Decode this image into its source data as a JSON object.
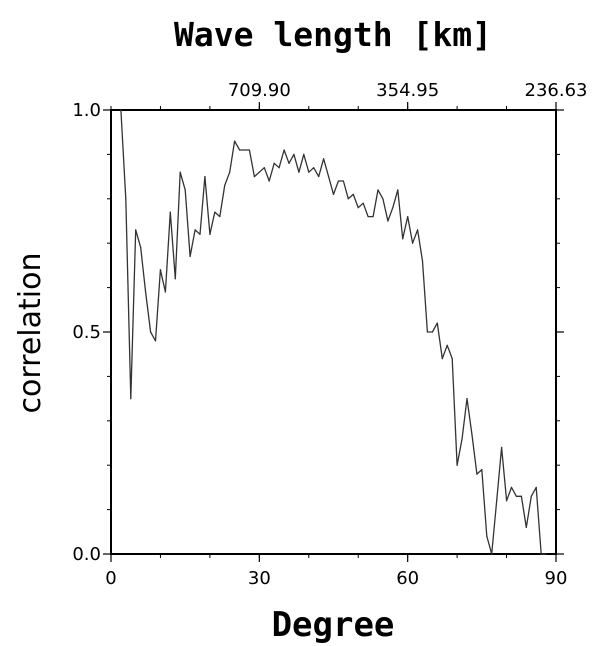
{
  "chart_data": {
    "type": "line",
    "title": "Wave length [km]",
    "xlabel": "Degree",
    "ylabel": "correlation",
    "xlim": [
      0,
      90
    ],
    "ylim": [
      0.0,
      1.0
    ],
    "x_ticks": [
      {
        "value": 0,
        "label": "0"
      },
      {
        "value": 30,
        "label": "30"
      },
      {
        "value": 60,
        "label": "60"
      },
      {
        "value": 90,
        "label": "90"
      }
    ],
    "y_ticks": [
      {
        "value": 0.0,
        "label": "0.0"
      },
      {
        "value": 0.5,
        "label": "0.5"
      },
      {
        "value": 1.0,
        "label": "1.0"
      }
    ],
    "top_ticks": [
      {
        "value": 30,
        "label": "709.90"
      },
      {
        "value": 60,
        "label": "354.95"
      },
      {
        "value": 90,
        "label": "236.63"
      }
    ],
    "grid": false,
    "series": [
      {
        "x": [
          2,
          3,
          4,
          5,
          6,
          7,
          8,
          9,
          10,
          11,
          12,
          13,
          14,
          15,
          16,
          17,
          18,
          19,
          20,
          21,
          22,
          23,
          24,
          25,
          26,
          27,
          28,
          29,
          30,
          31,
          32,
          33,
          34,
          35,
          36,
          37,
          38,
          39,
          40,
          41,
          42,
          43,
          44,
          45,
          46,
          47,
          48,
          49,
          50,
          51,
          52,
          53,
          54,
          55,
          56,
          57,
          58,
          59,
          60,
          61,
          62,
          63,
          64,
          65,
          66,
          67,
          68,
          69,
          70,
          71,
          72,
          73,
          74,
          75,
          76,
          77,
          78,
          79,
          80,
          81,
          82,
          83,
          84,
          85,
          86,
          87,
          88
        ],
        "y": [
          1.0,
          0.8,
          0.35,
          0.73,
          0.69,
          0.59,
          0.5,
          0.48,
          0.64,
          0.59,
          0.77,
          0.62,
          0.86,
          0.82,
          0.67,
          0.73,
          0.72,
          0.85,
          0.72,
          0.77,
          0.76,
          0.83,
          0.86,
          0.93,
          0.91,
          0.91,
          0.91,
          0.85,
          0.86,
          0.87,
          0.84,
          0.88,
          0.87,
          0.91,
          0.88,
          0.9,
          0.86,
          0.9,
          0.86,
          0.87,
          0.85,
          0.89,
          0.85,
          0.81,
          0.84,
          0.84,
          0.8,
          0.81,
          0.78,
          0.79,
          0.76,
          0.76,
          0.82,
          0.8,
          0.75,
          0.78,
          0.82,
          0.71,
          0.76,
          0.7,
          0.73,
          0.66,
          0.5,
          0.5,
          0.52,
          0.44,
          0.47,
          0.44,
          0.2,
          0.26,
          0.35,
          0.27,
          0.18,
          0.19,
          0.04,
          0.0,
          0.12,
          0.24,
          0.12,
          0.15,
          0.13,
          0.13,
          0.06,
          0.13,
          0.15,
          0.0,
          0.0
        ]
      }
    ]
  }
}
